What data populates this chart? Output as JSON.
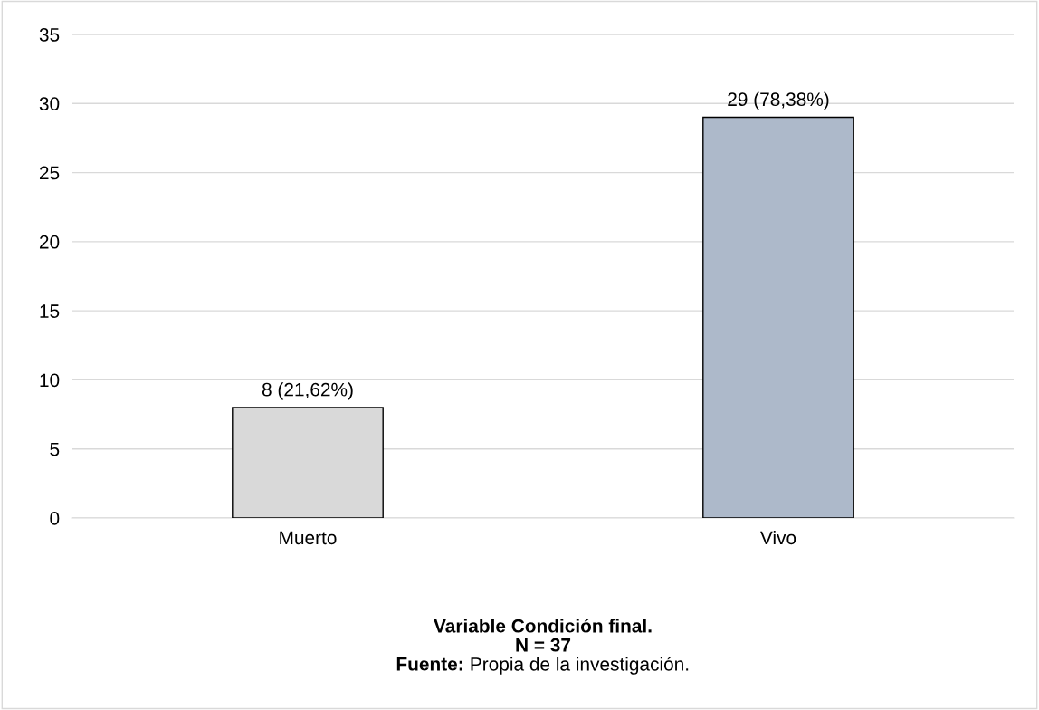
{
  "chart_data": {
    "type": "bar",
    "categories": [
      "Muerto",
      "Vivo"
    ],
    "values": [
      8,
      29
    ],
    "colors": [
      "#d9d9d9",
      "#adb9ca"
    ],
    "value_labels": [
      "8 (21,62%)",
      "29 (78,38%)"
    ],
    "ylim": [
      0,
      35
    ],
    "yticks": [
      0,
      5,
      10,
      15,
      20,
      25,
      30,
      35
    ],
    "grid": "y",
    "legend": false,
    "xlabel": "Variable Condición final.",
    "annotations": [
      "N = 37",
      "Fuente: Propia de la investigación."
    ]
  }
}
